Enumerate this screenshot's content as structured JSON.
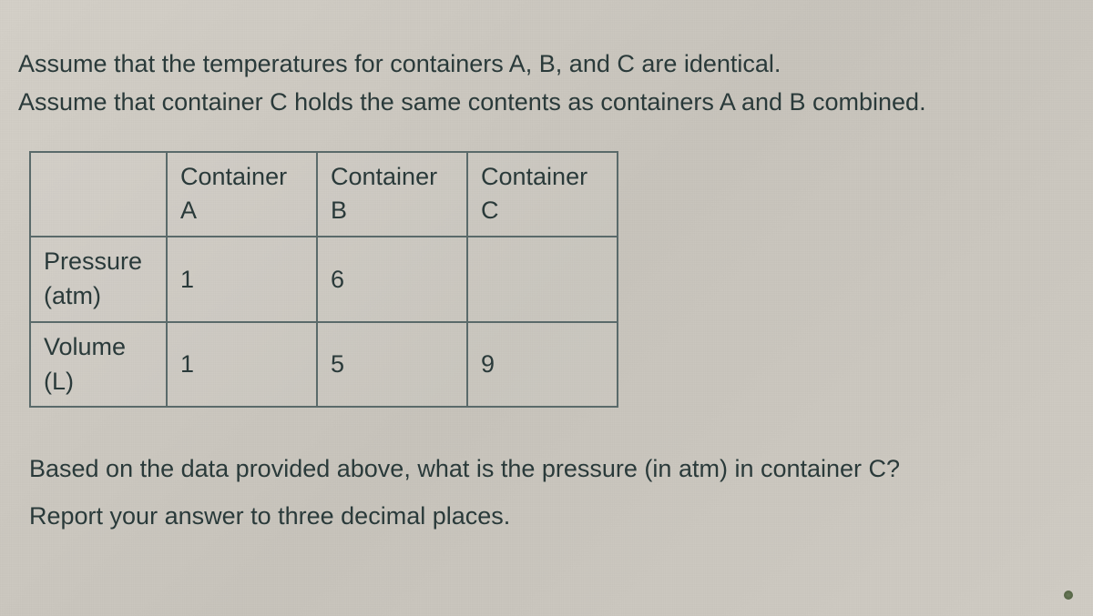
{
  "problem": {
    "line1": "Assume that the temperatures for containers A, B, and C are identical.",
    "line2": "Assume that container C holds the same contents as containers A and B combined."
  },
  "table": {
    "columns": [
      {
        "top": "Container",
        "sub": "A"
      },
      {
        "top": "Container",
        "sub": "B"
      },
      {
        "top": "Container",
        "sub": "C"
      }
    ],
    "rows": [
      {
        "label_top": "Pressure",
        "label_sub": "(atm)",
        "cells": [
          "1",
          "6",
          ""
        ]
      },
      {
        "label_top": "Volume",
        "label_sub": "(L)",
        "cells": [
          "1",
          "5",
          "9"
        ]
      }
    ],
    "border_color": "#5a6a6a",
    "text_color": "#2a3a3a",
    "font_size_pt": 20
  },
  "question": {
    "line1": "Based on the data provided above, what is the pressure (in atm) in container C?",
    "line2": "Report your answer to three decimal places."
  },
  "styling": {
    "background_color": "#d0ccc4",
    "text_color": "#2a3a3a",
    "font_family": "Arial"
  }
}
